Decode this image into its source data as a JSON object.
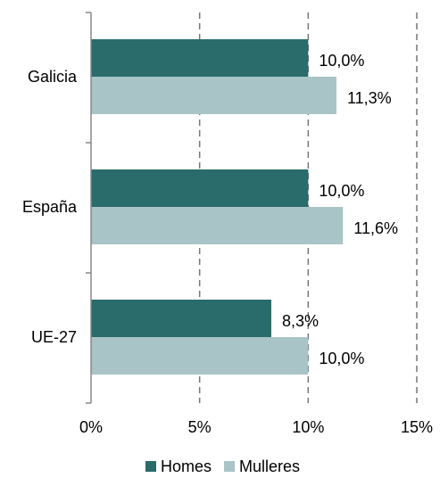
{
  "chart_data": {
    "type": "hbar",
    "categories": [
      "Galicia",
      "España",
      "UE-27"
    ],
    "series": [
      {
        "name": "Homes",
        "color": "#2a6b6c",
        "values": [
          10.0,
          10.0,
          8.3
        ],
        "value_labels": [
          "10,0%",
          "10,0%",
          "8,3%"
        ]
      },
      {
        "name": "Mulleres",
        "color": "#a9c4c6",
        "values": [
          11.3,
          11.6,
          10.0
        ],
        "value_labels": [
          "11,3%",
          "11,6%",
          "10,0%"
        ]
      }
    ],
    "xlim": [
      0,
      15
    ],
    "xticks": [
      {
        "value": 0,
        "label": "0%"
      },
      {
        "value": 5,
        "label": "5%"
      },
      {
        "value": 10,
        "label": "10%"
      },
      {
        "value": 15,
        "label": "15%"
      }
    ],
    "grid": true,
    "legend": "bottom"
  }
}
